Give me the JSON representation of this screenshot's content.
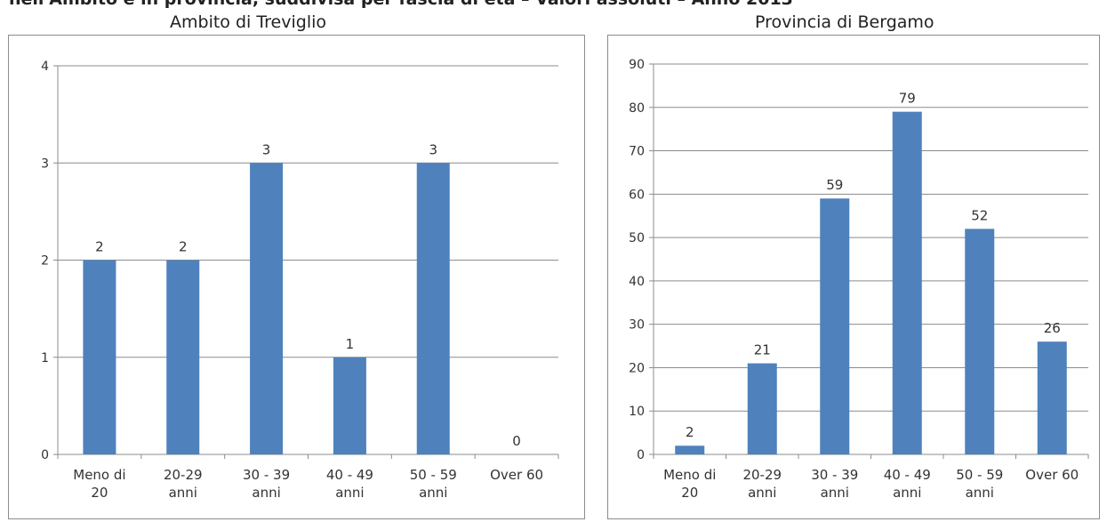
{
  "page_title": "nell'Ambito e in provincia, suddivisa per fascia di età – Valori assoluti – Anno 2013",
  "chart_data": [
    {
      "type": "bar",
      "title": "Ambito di Treviglio",
      "categories": [
        [
          "Meno di",
          "20"
        ],
        [
          "20-29",
          "anni"
        ],
        [
          "30 - 39",
          "anni"
        ],
        [
          "40 - 49",
          "anni"
        ],
        [
          "50 - 59",
          "anni"
        ],
        [
          "Over 60"
        ]
      ],
      "values": [
        2,
        2,
        3,
        1,
        3,
        0
      ],
      "data_labels": [
        "2",
        "2",
        "3",
        "1",
        "3",
        "0"
      ],
      "yticks": [
        "0",
        "1",
        "2",
        "3",
        "4"
      ],
      "ylim": [
        0,
        4
      ],
      "grid": true,
      "color": "#4f81bd"
    },
    {
      "type": "bar",
      "title": "Provincia di Bergamo",
      "categories": [
        [
          "Meno di",
          "20"
        ],
        [
          "20-29",
          "anni"
        ],
        [
          "30 - 39",
          "anni"
        ],
        [
          "40 - 49",
          "anni"
        ],
        [
          "50 - 59",
          "anni"
        ],
        [
          "Over 60"
        ]
      ],
      "values": [
        2,
        21,
        59,
        79,
        52,
        26
      ],
      "data_labels": [
        "2",
        "21",
        "59",
        "79",
        "52",
        "26"
      ],
      "yticks": [
        "0",
        "10",
        "20",
        "30",
        "40",
        "50",
        "60",
        "70",
        "80",
        "90"
      ],
      "ylim": [
        0,
        90
      ],
      "grid": true,
      "color": "#4f81bd"
    }
  ]
}
